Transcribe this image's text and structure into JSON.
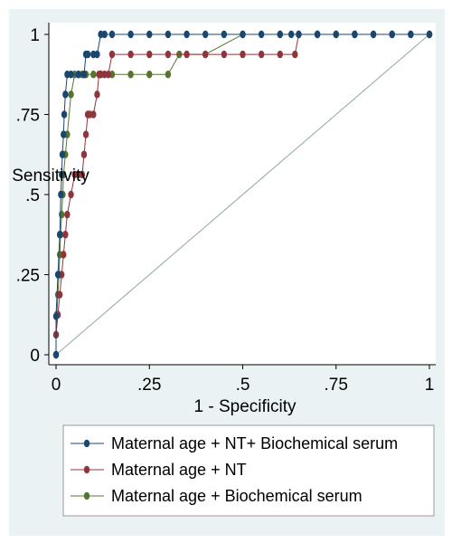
{
  "chart_data": {
    "type": "line",
    "title": "",
    "xlabel": "1 - Specificity",
    "ylabel": "Sensitivity",
    "xlim": [
      0,
      1
    ],
    "ylim": [
      0,
      1
    ],
    "xticks": [
      {
        "value": 0,
        "label": "0"
      },
      {
        "value": 0.25,
        "label": ".25"
      },
      {
        "value": 0.5,
        "label": ".5"
      },
      {
        "value": 0.75,
        "label": ".75"
      },
      {
        "value": 1,
        "label": "1"
      }
    ],
    "yticks": [
      {
        "value": 0,
        "label": "0"
      },
      {
        "value": 0.25,
        "label": ".25"
      },
      {
        "value": 0.5,
        "label": ".5"
      },
      {
        "value": 0.75,
        "label": ".75"
      },
      {
        "value": 1,
        "label": "1"
      }
    ],
    "grid": false,
    "legend_position": "bottom",
    "reference_line": {
      "x": [
        0,
        1
      ],
      "y": [
        0,
        1
      ],
      "color": "#8fa8aa"
    },
    "series": [
      {
        "name": "Maternal age + NT+ Biochemical serum",
        "color": "#1a476f",
        "x": [
          0,
          0,
          0.005,
          0.01,
          0.013,
          0.015,
          0.017,
          0.02,
          0.022,
          0.025,
          0.03,
          0.04,
          0.06,
          0.075,
          0.08,
          0.085,
          0.1,
          0.11,
          0.12,
          0.13,
          0.15,
          0.2,
          0.25,
          0.3,
          0.35,
          0.4,
          0.45,
          0.5,
          0.55,
          0.6,
          0.63,
          0.65,
          0.7,
          0.75,
          0.8,
          0.85,
          0.9,
          0.95,
          1
        ],
        "y": [
          0,
          0.12,
          0.25,
          0.375,
          0.5,
          0.5625,
          0.625,
          0.6875,
          0.75,
          0.8125,
          0.875,
          0.875,
          0.875,
          0.875,
          0.9375,
          0.9375,
          0.9375,
          0.9375,
          1,
          1,
          1,
          1,
          1,
          1,
          1,
          1,
          1,
          1,
          1,
          1,
          1,
          1,
          1,
          1,
          1,
          1,
          1,
          1,
          1
        ]
      },
      {
        "name": "Maternal age + NT",
        "color": "#90353b",
        "x": [
          0,
          0,
          0.005,
          0.01,
          0.015,
          0.02,
          0.025,
          0.03,
          0.04,
          0.05,
          0.06,
          0.07,
          0.075,
          0.08,
          0.085,
          0.09,
          0.1,
          0.11,
          0.115,
          0.12,
          0.13,
          0.14,
          0.15,
          0.2,
          0.25,
          0.3,
          0.35,
          0.4,
          0.45,
          0.5,
          0.55,
          0.6,
          0.64,
          0.65,
          0.7,
          0.75,
          0.8,
          0.85,
          0.9,
          0.95,
          1
        ],
        "y": [
          0,
          0.0625,
          0.125,
          0.1875,
          0.25,
          0.3125,
          0.375,
          0.4375,
          0.5,
          0.5625,
          0.5625,
          0.5625,
          0.625,
          0.6875,
          0.75,
          0.75,
          0.75,
          0.8125,
          0.875,
          0.875,
          0.875,
          0.875,
          0.9375,
          0.9375,
          0.9375,
          0.9375,
          0.9375,
          0.9375,
          0.9375,
          0.9375,
          0.9375,
          0.9375,
          0.9375,
          1,
          1,
          1,
          1,
          1,
          1,
          1,
          1
        ]
      },
      {
        "name": "Maternal age + Biochemical serum",
        "color": "#55752f",
        "x": [
          0,
          0,
          0.002,
          0.005,
          0.008,
          0.01,
          0.012,
          0.015,
          0.018,
          0.02,
          0.025,
          0.03,
          0.04,
          0.05,
          0.06,
          0.07,
          0.08,
          0.1,
          0.12,
          0.15,
          0.2,
          0.25,
          0.3,
          0.33,
          0.4,
          0.5,
          0.6,
          0.7,
          0.8,
          0.9,
          1
        ],
        "y": [
          0,
          0.0625,
          0.125,
          0.1875,
          0.25,
          0.3125,
          0.375,
          0.4375,
          0.5,
          0.5625,
          0.625,
          0.6875,
          0.8125,
          0.875,
          0.875,
          0.875,
          0.875,
          0.875,
          0.875,
          0.875,
          0.875,
          0.875,
          0.875,
          0.9375,
          0.9375,
          1,
          1,
          1,
          1,
          1,
          1
        ]
      }
    ]
  }
}
